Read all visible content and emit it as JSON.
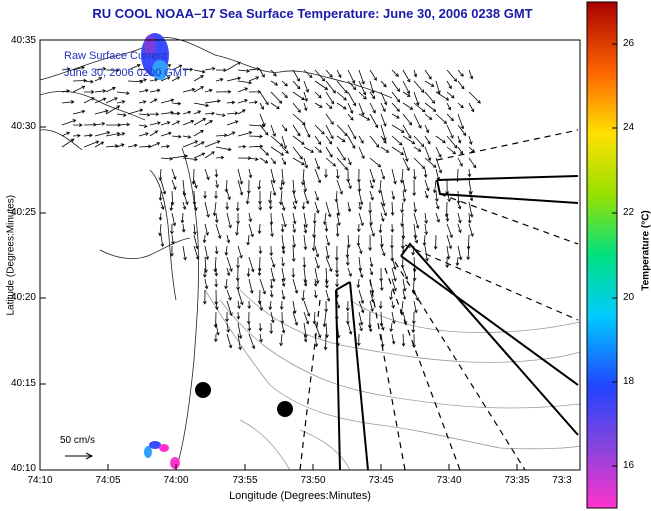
{
  "title": "RU COOL  NOAA–17  Sea Surface Temperature:  June 30, 2006 0238 GMT",
  "inset_text": [
    "Raw Surface Current",
    "June 30, 2006 0200 GMT"
  ],
  "scale_label": "50 cm/s",
  "x_axis": {
    "label": "Longitude (Degrees:Minutes)",
    "ticks": [
      "74:10",
      "74:05",
      "74:00",
      "73:55",
      "73:50",
      "73:45",
      "73:40",
      "73:35",
      "73:3"
    ]
  },
  "y_axis": {
    "label": "Latitude (Degrees:Minutes)",
    "ticks": [
      "40:35",
      "40:30",
      "40:25",
      "40:20",
      "40:15",
      "40:10"
    ]
  },
  "colorbar": {
    "label": "Temperature (°C)",
    "ticks": [
      "26",
      "24",
      "22",
      "20",
      "18",
      "16"
    ]
  },
  "colors": {
    "title": "#1a1aa8",
    "inset": "#2233bb",
    "frame": "#000000"
  }
}
